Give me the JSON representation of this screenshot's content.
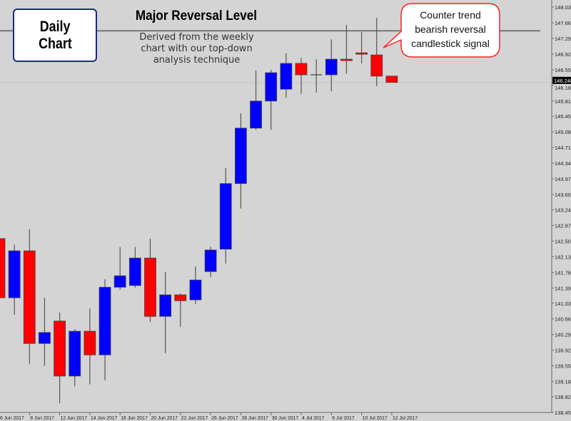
{
  "chart_data": {
    "type": "candlestick",
    "title": "Major Reversal Level",
    "subtitle": "Derived from the weekly chart with our top-down analysis technique",
    "label_box": [
      "Daily",
      "Chart"
    ],
    "callout": [
      "Counter trend",
      "bearish reversal",
      "candlestick signal"
    ],
    "reversal_level": 147.47,
    "current_price": "146.248",
    "ylim": [
      138.45,
      148.03
    ],
    "y_ticks": [
      "148.030",
      "147.660",
      "147.290",
      "146.920",
      "146.550",
      "146.180",
      "145.810",
      "145.450",
      "145.080",
      "144.710",
      "144.340",
      "143.970",
      "143.600",
      "143.240",
      "142.870",
      "142.500",
      "142.130",
      "141.760",
      "141.390",
      "141.030",
      "140.660",
      "140.290",
      "139.920",
      "139.550",
      "139.180",
      "138.820",
      "138.450"
    ],
    "x_ticks": [
      {
        "candle": 0,
        "label": "6 Jun 2017"
      },
      {
        "candle": 2,
        "label": "8 Jun 2017"
      },
      {
        "candle": 4,
        "label": "12 Jun 2017"
      },
      {
        "candle": 6,
        "label": "14 Jun 2017"
      },
      {
        "candle": 8,
        "label": "16 Jun 2017"
      },
      {
        "candle": 10,
        "label": "20 Jun 2017"
      },
      {
        "candle": 12,
        "label": "22 Jun 2017"
      },
      {
        "candle": 14,
        "label": "26 Jun 2017"
      },
      {
        "candle": 16,
        "label": "28 Jun 2017"
      },
      {
        "candle": 18,
        "label": "30 Jun 2017"
      },
      {
        "candle": 20,
        "label": "4 Jul 2017"
      },
      {
        "candle": 22,
        "label": "6 Jul 2017"
      },
      {
        "candle": 24,
        "label": "10 Jul 2017"
      },
      {
        "candle": 26,
        "label": "12 Jul 2017"
      }
    ],
    "colors": {
      "bull": "#0000ff",
      "bear": "#ff0000",
      "background": "#d4d4d4",
      "wick": "#555555"
    },
    "candles": [
      {
        "o": 142.56,
        "h": 142.6,
        "l": 141.1,
        "c": 141.16
      },
      {
        "o": 141.16,
        "h": 142.42,
        "l": 140.76,
        "c": 142.27
      },
      {
        "o": 142.27,
        "h": 142.78,
        "l": 139.6,
        "c": 140.08
      },
      {
        "o": 140.08,
        "h": 141.16,
        "l": 139.55,
        "c": 140.34
      },
      {
        "o": 140.61,
        "h": 140.81,
        "l": 138.67,
        "c": 139.31
      },
      {
        "o": 139.31,
        "h": 140.42,
        "l": 139.07,
        "c": 140.37
      },
      {
        "o": 140.37,
        "h": 140.91,
        "l": 139.11,
        "c": 139.81
      },
      {
        "o": 139.81,
        "h": 141.6,
        "l": 139.21,
        "c": 141.41
      },
      {
        "o": 141.41,
        "h": 142.36,
        "l": 141.35,
        "c": 141.68
      },
      {
        "o": 141.45,
        "h": 142.36,
        "l": 141.4,
        "c": 142.1
      },
      {
        "o": 142.1,
        "h": 142.56,
        "l": 140.59,
        "c": 140.72
      },
      {
        "o": 140.72,
        "h": 141.77,
        "l": 139.85,
        "c": 141.23
      },
      {
        "o": 141.23,
        "h": 141.26,
        "l": 140.47,
        "c": 141.09
      },
      {
        "o": 141.11,
        "h": 141.9,
        "l": 141.01,
        "c": 141.58
      },
      {
        "o": 141.78,
        "h": 142.37,
        "l": 141.65,
        "c": 142.29
      },
      {
        "o": 142.31,
        "h": 144.23,
        "l": 141.97,
        "c": 143.86
      },
      {
        "o": 143.86,
        "h": 145.52,
        "l": 143.27,
        "c": 145.17
      },
      {
        "o": 145.17,
        "h": 146.53,
        "l": 145.13,
        "c": 145.81
      },
      {
        "o": 145.81,
        "h": 146.55,
        "l": 145.13,
        "c": 146.48
      },
      {
        "o": 146.09,
        "h": 146.94,
        "l": 145.89,
        "c": 146.7
      },
      {
        "o": 146.7,
        "h": 146.83,
        "l": 145.98,
        "c": 146.43
      },
      {
        "o": 146.43,
        "h": 146.8,
        "l": 146.01,
        "c": 146.43
      },
      {
        "o": 146.43,
        "h": 147.27,
        "l": 146.04,
        "c": 146.8
      },
      {
        "o": 146.8,
        "h": 147.61,
        "l": 146.46,
        "c": 146.77
      },
      {
        "o": 146.95,
        "h": 147.44,
        "l": 146.7,
        "c": 146.92
      },
      {
        "o": 146.9,
        "h": 147.78,
        "l": 146.16,
        "c": 146.4
      },
      {
        "o": 146.4,
        "h": 146.4,
        "l": 146.25,
        "c": 146.25
      }
    ]
  }
}
